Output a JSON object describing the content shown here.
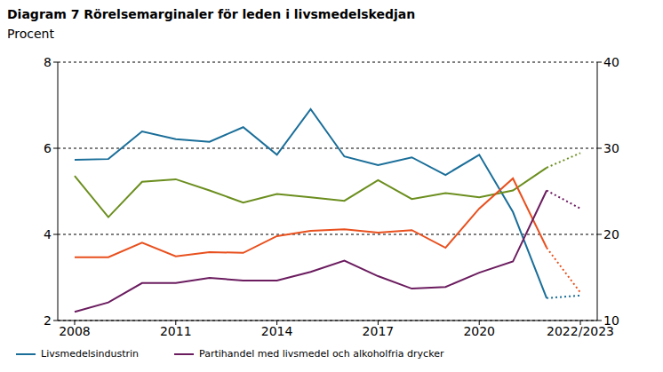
{
  "chart_data": {
    "type": "line",
    "title": "Diagram 7 Rörelsemarginaler för leden i livsmedelskedjan",
    "subtitle": "Procent",
    "x": [
      2008,
      2009,
      2010,
      2011,
      2012,
      2013,
      2014,
      2015,
      2016,
      2017,
      2018,
      2019,
      2020,
      2021,
      2022,
      2023
    ],
    "xlim": [
      2007.5,
      2023.5
    ],
    "xticks": [
      2008,
      2011,
      2014,
      2017,
      2020,
      {
        "value": 2023,
        "label": "2022/2023"
      }
    ],
    "ylim": [
      2,
      8
    ],
    "yticks": [
      2,
      4,
      6,
      8
    ],
    "y2lim": [
      10,
      40
    ],
    "y2ticks": [
      10,
      20,
      30,
      40
    ],
    "grid": true,
    "legend": "bottom",
    "series": [
      {
        "name": "Livsmedelsindustrin",
        "color": "#1a6e99",
        "line_style": "solid",
        "values": [
          5.73,
          5.75,
          6.39,
          6.21,
          6.15,
          6.49,
          5.85,
          6.91,
          5.81,
          5.61,
          5.79,
          5.38,
          5.85,
          4.52,
          2.52,
          null
        ]
      },
      {
        "color": "#1a6e99",
        "line_style": "dotted",
        "values": [
          null,
          null,
          null,
          null,
          null,
          null,
          null,
          null,
          null,
          null,
          null,
          null,
          null,
          null,
          2.52,
          2.58
        ]
      },
      {
        "color": "#6b8e1e",
        "line_style": "solid",
        "values": [
          5.36,
          4.4,
          5.22,
          5.28,
          5.02,
          4.74,
          4.94,
          4.86,
          4.78,
          5.26,
          4.82,
          4.96,
          4.86,
          5.02,
          5.55,
          null
        ]
      },
      {
        "color": "#6b8e1e",
        "line_style": "dotted",
        "values": [
          null,
          null,
          null,
          null,
          null,
          null,
          null,
          null,
          null,
          null,
          null,
          null,
          null,
          null,
          5.55,
          5.89
        ]
      },
      {
        "color": "#e8501e",
        "line_style": "solid",
        "values": [
          3.47,
          3.47,
          3.81,
          3.49,
          3.59,
          3.57,
          3.96,
          4.08,
          4.12,
          4.04,
          4.1,
          3.69,
          4.6,
          5.3,
          3.69,
          null
        ]
      },
      {
        "color": "#e8501e",
        "line_style": "dotted",
        "values": [
          null,
          null,
          null,
          null,
          null,
          null,
          null,
          null,
          null,
          null,
          null,
          null,
          null,
          null,
          3.69,
          2.65
        ]
      },
      {
        "name": "Partihandel med livsmedel och alkoholfria drycker",
        "color": "#6b1c5f",
        "line_style": "solid",
        "values": [
          2.2,
          2.42,
          2.87,
          2.87,
          2.99,
          2.93,
          2.93,
          3.13,
          3.39,
          3.03,
          2.74,
          2.78,
          3.11,
          3.37,
          5.02,
          null
        ]
      },
      {
        "color": "#6b1c5f",
        "line_style": "dotted",
        "values": [
          null,
          null,
          null,
          null,
          null,
          null,
          null,
          null,
          null,
          null,
          null,
          null,
          null,
          null,
          5.02,
          4.6
        ]
      }
    ]
  }
}
